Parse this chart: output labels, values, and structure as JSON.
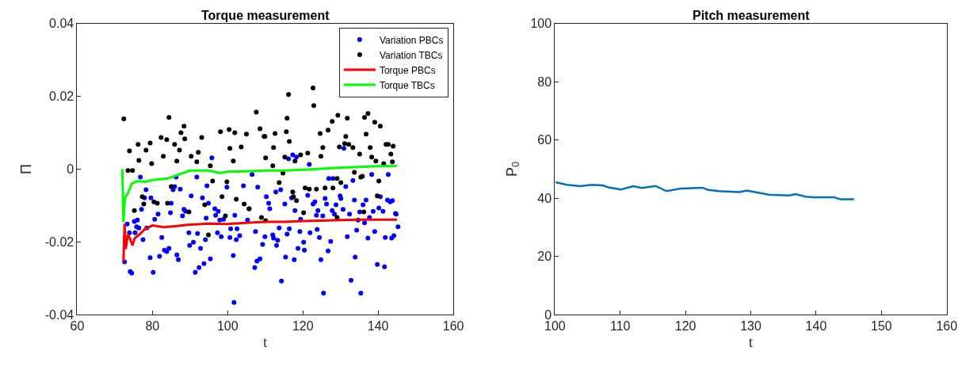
{
  "chart_data": [
    {
      "type": "scatter",
      "title": "Torque measurement",
      "xlabel": "t",
      "ylabel": "Π",
      "xlim": [
        60,
        160
      ],
      "xticks": [
        60,
        80,
        100,
        120,
        140,
        160
      ],
      "ylim": [
        -0.04,
        0.04
      ],
      "yticks": [
        -0.04,
        -0.02,
        0,
        0.02,
        0.04
      ],
      "grid": false,
      "legend": "top right",
      "series": [
        {
          "name": "Variation PBCs",
          "type": "scatter",
          "marker": "circle",
          "color": "#0000ff",
          "x": [
            76.8,
            78.3,
            77.9,
            79.6,
            73.3,
            75.2,
            76.0,
            75.8,
            76.4,
            78.5,
            77.1,
            73.9,
            75.4,
            72.6,
            74.1,
            74.5,
            77.5,
            79.4,
            80.2,
            80.6,
            81.5,
            82.5,
            83.2,
            83.8,
            84.4,
            81.9,
            84.8,
            85.0,
            85.5,
            85.9,
            87.4,
            86.3,
            86.5,
            86.9,
            88.0,
            88.4,
            88.8,
            89.7,
            89.9,
            90.3,
            90.9,
            91.4,
            91.8,
            92.0,
            92.4,
            92.8,
            93.7,
            93.3,
            94.1,
            94.3,
            94.5,
            94.9,
            95.4,
            95.8,
            96.6,
            96.8,
            97.3,
            97.5,
            97.9,
            98.3,
            98.9,
            99.8,
            100.6,
            100.8,
            101.5,
            101.7,
            101.9,
            102.3,
            102.5,
            103.2,
            104.2,
            105.3,
            105.7,
            106.5,
            107.4,
            107.2,
            107.8,
            108.6,
            108.0,
            109.3,
            109.9,
            110.3,
            110.9,
            111.2,
            112.8,
            114.1,
            115.2,
            112.0,
            112.2,
            113.0,
            113.3,
            113.7,
            114.3,
            115.4,
            115.8,
            116.4,
            116.2,
            117.3,
            118.3,
            117.0,
            117.9,
            117.7,
            118.7,
            119.2,
            119.4,
            120.2,
            120.4,
            121.3,
            121.7,
            121.9,
            122.7,
            123.2,
            123.6,
            123.8,
            124.0,
            124.4,
            124.8,
            125.3,
            125.5,
            125.9,
            126.3,
            126.7,
            126.9,
            127.4,
            128.0,
            127.8,
            128.4,
            128.8,
            129.9,
            130.1,
            130.7,
            130.9,
            131.4,
            131.8,
            132.4,
            132.8,
            133.3,
            133.7,
            133.9,
            134.3,
            134.7,
            135.1,
            135.4,
            136.0,
            136.4,
            136.8,
            137.3,
            137.7,
            138.3,
            138.7,
            139.1,
            139.8,
            140.2,
            140.6,
            141.3,
            141.7,
            141.9,
            142.5,
            142.7,
            143.2,
            143.6,
            143.8,
            144.2,
            144.6,
            144.8,
            145.3
          ],
          "values": [
            -0.0022,
            -0.0057,
            -0.0079,
            -0.0079,
            -0.0151,
            -0.0144,
            -0.014,
            -0.0159,
            -0.0162,
            -0.0162,
            -0.0111,
            -0.0175,
            -0.0175,
            -0.0255,
            -0.0282,
            -0.0286,
            -0.0194,
            -0.0244,
            -0.0284,
            -0.0138,
            -0.0124,
            -0.0188,
            -0.0223,
            -0.0227,
            -0.0218,
            -0.024,
            -0.012,
            -0.0094,
            -0.0057,
            -0.0048,
            -0.0055,
            -0.0022,
            -0.0236,
            -0.0249,
            -0.0129,
            -0.0111,
            -0.0116,
            -0.0175,
            -0.021,
            -0.0074,
            -0.0201,
            -0.0284,
            -0.0022,
            -0.0177,
            -0.0271,
            -0.0218,
            -0.026,
            -0.0079,
            -0.0194,
            -0.0135,
            -0.0046,
            -0.0094,
            -0.0247,
            0.0031,
            -0.0109,
            -0.0127,
            -0.0175,
            -0.0116,
            -0.014,
            -0.0186,
            -0.0138,
            -0.005,
            -0.0188,
            -0.0164,
            -0.0238,
            -0.0367,
            -0.0127,
            -0.0194,
            -0.0164,
            -0.0183,
            -0.0046,
            -0.014,
            -0.0109,
            -0.0015,
            -0.0172,
            -0.0271,
            -0.0253,
            -0.0247,
            -0.005,
            -0.0207,
            -0.0186,
            -0.0076,
            -0.0094,
            -0.0109,
            -0.0063,
            -0.0057,
            -0.0096,
            -0.0181,
            -0.019,
            -0.021,
            -0.0196,
            -0.0162,
            -0.0308,
            -0.0242,
            -0.0179,
            -0.0164,
            0.0028,
            0.0039,
            0.0033,
            -0.0079,
            -0.0114,
            -0.0249,
            -0.0218,
            -0.0172,
            -0.0138,
            -0.0201,
            -0.0223,
            -0.0072,
            0.0013,
            -0.0175,
            -0.0096,
            -0.009,
            -0.0127,
            -0.0166,
            -0.0114,
            -0.0188,
            -0.0249,
            -0.0129,
            -0.0341,
            -0.0081,
            -0.0096,
            -0.0225,
            -0.0026,
            -0.0199,
            -0.0026,
            -0.0114,
            -0.0124,
            -0.0098,
            -0.0074,
            -0.0081,
            -0.0111,
            0.0057,
            -0.0048,
            -0.0186,
            -0.0124,
            -0.0306,
            -0.0031,
            -0.0085,
            -0.0242,
            -0.0168,
            -0.014,
            -0.0118,
            -0.0341,
            -0.0098,
            -0.0148,
            -0.0085,
            -0.019,
            -0.0133,
            -0.0015,
            -0.0116,
            -0.0172,
            -0.0262,
            -0.0107,
            -0.0076,
            -0.0116,
            -0.0269,
            -0.0188,
            -0.0085,
            -0.0015,
            -0.009,
            -0.019,
            -0.0087,
            -0.0183,
            -0.0122,
            -0.0124,
            -0.0159
          ]
        },
        {
          "name": "Variation TBCs",
          "type": "scatter",
          "marker": "circle",
          "color": "#000000",
          "x": [
            72.4,
            73.9,
            76.2,
            76.4,
            78.3,
            79.4,
            79.8,
            82.3,
            83.8,
            84.4,
            85.9,
            87.6,
            88.4,
            88.6,
            87.2,
            90.3,
            93.1,
            92.2,
            98.1,
            100.4,
            101.9,
            105.0,
            107.6,
            108.6,
            109.7,
            103.6,
            100.6,
            101.5,
            95.4,
            91.8,
            86.5,
            82.9,
            73.5,
            74.7,
            77.3,
            75.2,
            77.7,
            80.4,
            81.3,
            84.0,
            85.0,
            89.7,
            96.0,
            99.8,
            98.5,
            102.3,
            104.4,
            105.7,
            109.0,
            110.1,
            99.4,
            94.9,
            93.9,
            116.2,
            122.7,
            122.9,
            115.8,
            112.6,
            116.4,
            115.6,
            109.9,
            112.2,
            110.1,
            115.2,
            117.9,
            119.4,
            121.3,
            124.6,
            125.3,
            124.8,
            126.7,
            127.8,
            129.3,
            131.8,
            131.4,
            132.2,
            131.1,
            129.7,
            133.3,
            135.1,
            136.8,
            136.4,
            137.3,
            139.1,
            140.6,
            137.9,
            138.3,
            139.4,
            141.5,
            142.1,
            144.0,
            143.4,
            143.8,
            142.7,
            112.0,
            114.7,
            113.7,
            117.3,
            117.5,
            118.3,
            120.6,
            121.7,
            123.6,
            125.9,
            128.0,
            129.1,
            130.1,
            133.7,
            135.8,
            135.4,
            140.2,
            139.8,
            120.2,
            129.1,
            136.2
          ],
          "values": [
            0.0138,
            0.005,
            0.0068,
            0.0024,
            0.0052,
            0.0072,
            0.0015,
            0.0087,
            0.0081,
            0.0142,
            0.0068,
            0.01,
            0.0118,
            0.0083,
            0.0052,
            0.0035,
            0.0087,
            0.0046,
            0.0103,
            0.0109,
            0.01,
            0.0096,
            0.0157,
            0.0111,
            0.009,
            0.0061,
            0.0057,
            0.0022,
            0.0009,
            0.002,
            0.0022,
            0.0035,
            -0.0004,
            -0.0004,
            -0.0076,
            -0.0114,
            -0.0096,
            -0.009,
            -0.0094,
            -0.0094,
            -0.0048,
            -0.0118,
            -0.0033,
            -0.0035,
            -0.0076,
            -0.0083,
            -0.0096,
            -0.0109,
            -0.0133,
            -0.0142,
            -0.0129,
            -0.0181,
            -0.0098,
            0.0205,
            0.0223,
            0.0175,
            0.014,
            0.0098,
            0.0076,
            0.0103,
            0.009,
            0.0059,
            0.0031,
            0.0033,
            0.0022,
            0.0039,
            0.0044,
            0.0098,
            0.0059,
            0.0035,
            0.0107,
            0.0131,
            0.0148,
            0.014,
            0.009,
            0.0068,
            0.007,
            0.0061,
            0.0059,
            0.0041,
            0.0096,
            0.0142,
            0.0153,
            0.0129,
            0.0118,
            0.0059,
            0.0033,
            0.0022,
            0.0015,
            0.0068,
            0.0063,
            0.0041,
            0.002,
            0.0068,
            0.0009,
            -0.0011,
            -0.0037,
            -0.0063,
            -0.0076,
            -0.0087,
            -0.0052,
            -0.0055,
            -0.0055,
            -0.0052,
            -0.0052,
            -0.0026,
            -0.0037,
            -0.0009,
            -0.002,
            -0.0022,
            -0.0033,
            -0.0074,
            -0.012,
            -0.0133,
            -0.0118
          ]
        },
        {
          "name": "Torque PBCs",
          "type": "line",
          "marker": "none",
          "line_style": "solid",
          "color": "#ff0000",
          "x": [
            72.3,
            72.6,
            72.9,
            73.5,
            74.0,
            74.7,
            75.3,
            76.5,
            78,
            80,
            83,
            86,
            90,
            95,
            100,
            105,
            110,
            115,
            120,
            125,
            130,
            135,
            140,
            145
          ],
          "values": [
            -0.0255,
            -0.015,
            -0.022,
            -0.018,
            -0.019,
            -0.021,
            -0.019,
            -0.018,
            -0.0165,
            -0.0155,
            -0.016,
            -0.0157,
            -0.0153,
            -0.015,
            -0.0151,
            -0.0148,
            -0.0145,
            -0.0145,
            -0.0143,
            -0.0142,
            -0.014,
            -0.0139,
            -0.0139,
            -0.0139
          ]
        },
        {
          "name": "Torque TBCs",
          "type": "line",
          "marker": "none",
          "line_style": "solid",
          "color": "#00ff00",
          "x": [
            72,
            72.3,
            72.7,
            73.5,
            74.5,
            76,
            78,
            80,
            84,
            87,
            90,
            95,
            98,
            100,
            105,
            110,
            115,
            120,
            125,
            130,
            135,
            140,
            145
          ],
          "values": [
            0,
            -0.0146,
            -0.008,
            -0.0066,
            -0.004,
            -0.0033,
            -0.0035,
            -0.003,
            -0.0026,
            -0.0015,
            -0.0004,
            -0.0004,
            -0.0011,
            -0.0007,
            -0.0006,
            -0.0004,
            -0.0004,
            -0.0002,
            0.0001,
            0.0004,
            0.0006,
            0.0008,
            0.0009
          ]
        }
      ]
    },
    {
      "type": "line",
      "title": "Pitch measurement",
      "xlabel": "t",
      "ylabel": "P$_{0}$",
      "xlim": [
        100,
        160
      ],
      "xticks": [
        100,
        110,
        120,
        130,
        140,
        150,
        160
      ],
      "ylim": [
        0,
        100
      ],
      "yticks": [
        0,
        20,
        40,
        60,
        80,
        100
      ],
      "grid": false,
      "legend": false,
      "marker": "none",
      "line_style": "solid",
      "series": [
        {
          "color": "#0072bd",
          "x": [
            100.1,
            101.8,
            103.9,
            105.6,
            107.3,
            108.2,
            110.1,
            112.0,
            113.3,
            115.4,
            117.1,
            119.2,
            122.6,
            123.5,
            125.2,
            128.2,
            129.4,
            132.8,
            135.8,
            136.9,
            138.4,
            139.6,
            142.8,
            143.7,
            145.8
          ],
          "values": [
            45.5,
            44.6,
            44.1,
            44.6,
            44.4,
            43.7,
            43.0,
            44.1,
            43.5,
            44.2,
            42.4,
            43.3,
            43.6,
            42.8,
            42.4,
            42.1,
            42.6,
            41.2,
            40.9,
            41.4,
            40.5,
            40.3,
            40.3,
            39.6,
            39.6
          ]
        }
      ]
    }
  ]
}
